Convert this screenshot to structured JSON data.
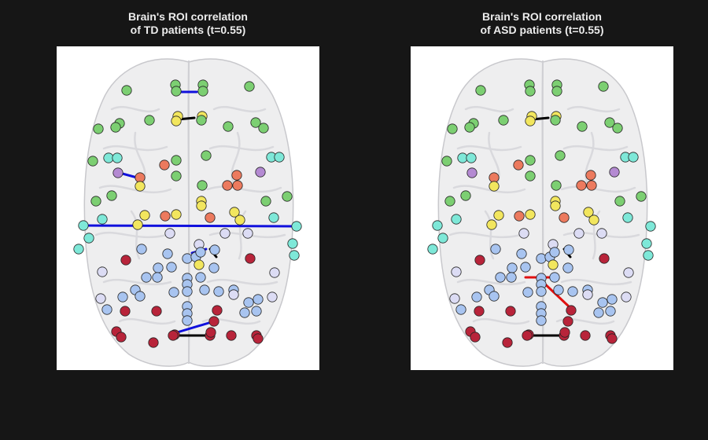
{
  "panels": [
    {
      "id": "td",
      "title_line1": "Brain's ROI correlation",
      "title_line2": "of TD patients (t=0.55)"
    },
    {
      "id": "asd",
      "title_line1": "Brain's ROI correlation",
      "title_line2": "of ASD patients (t=0.55)"
    }
  ],
  "colors": {
    "background": "#161616",
    "positive_edge": "#e01010",
    "negative_edge": "#1010dd",
    "neutral_edge": "#000000",
    "roi_green": "#7ccf72",
    "roi_yellow": "#f2e65e",
    "roi_orange": "#ec7a5e",
    "roi_purple": "#b48ad2",
    "roi_cyan": "#7ee8d8",
    "roi_lightblue": "#a8c4f0",
    "roi_lavender": "#dcdcf4",
    "roi_red": "#b8243a"
  }
}
